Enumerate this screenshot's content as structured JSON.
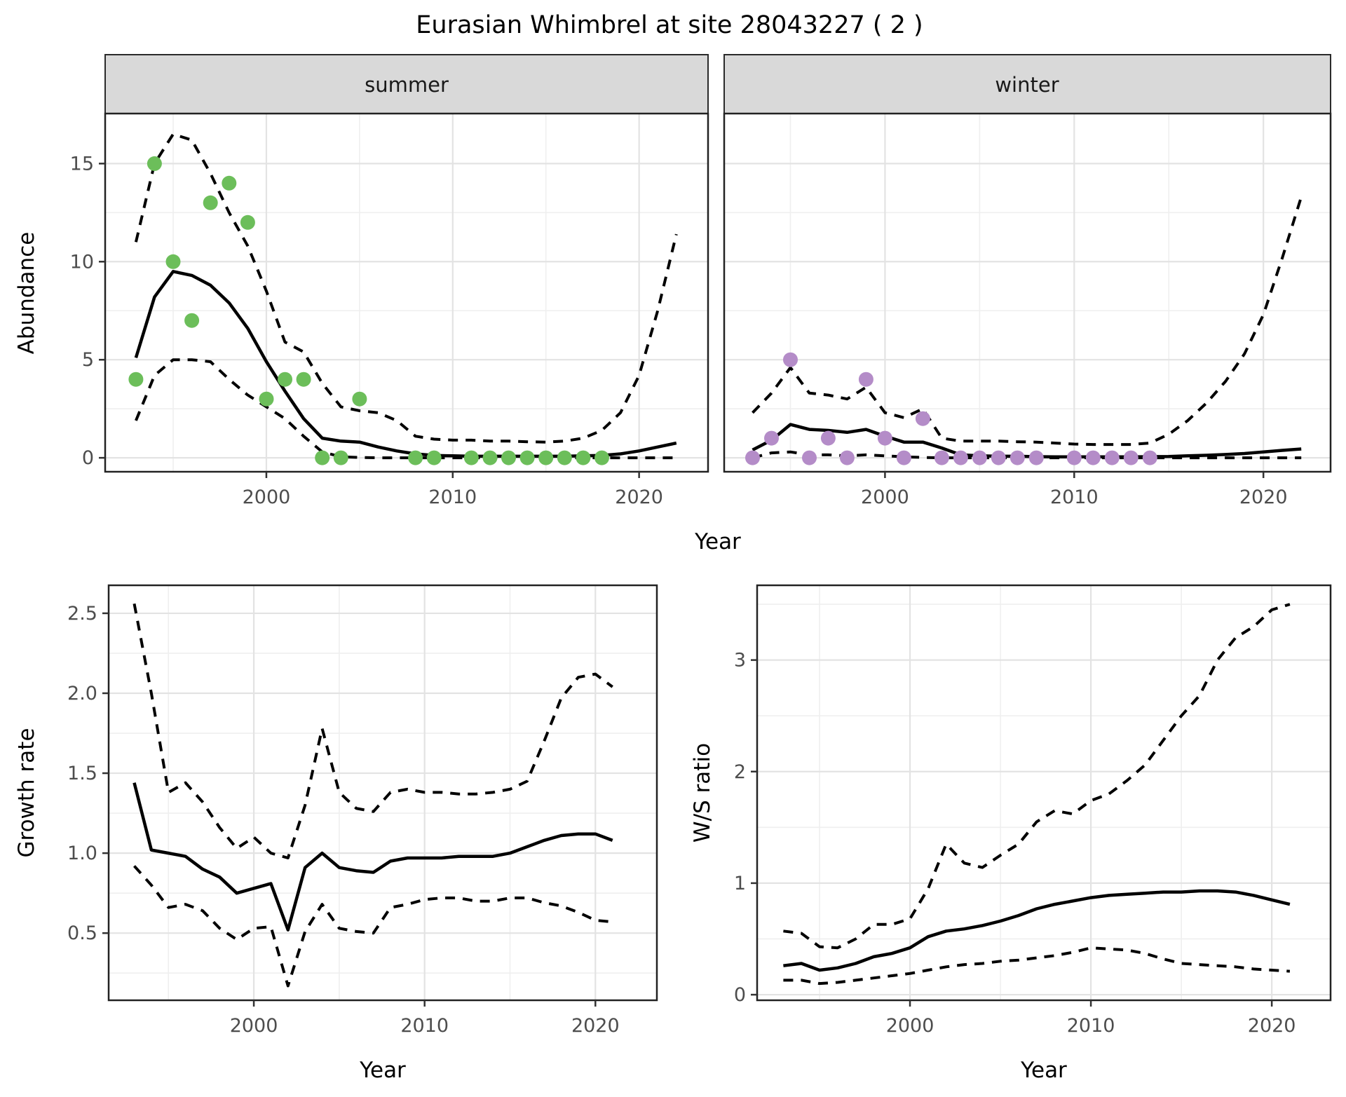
{
  "title": "Eurasian Whimbrel at site 28043227 ( 2 )",
  "colors": {
    "summer_points": "#6CBE5A",
    "winter_points": "#B48CC8",
    "line": "#000000",
    "strip_fill": "#D9D9D9",
    "grid_major": "#e3e3e3",
    "grid_minor": "#efefef"
  },
  "chart_data": [
    {
      "id": "abundance_summer",
      "type": "line",
      "facet": "summer",
      "xlabel": "Year",
      "ylabel": "Abundance",
      "xlim": [
        1991.35,
        2023.7
      ],
      "ylim": [
        -0.71,
        17.55
      ],
      "x_ticks": {
        "major": [
          2000,
          2010,
          2020
        ],
        "labels": [
          "2000",
          "2010",
          "2020"
        ],
        "minor": [
          1995,
          2005,
          2015
        ]
      },
      "y_ticks": {
        "major": [
          0,
          5,
          10,
          15
        ],
        "labels": [
          "0",
          "5",
          "10",
          "15"
        ],
        "minor": [
          2.5,
          7.5,
          12.5
        ],
        "show_labels": true
      },
      "series": [
        {
          "name": "observed",
          "kind": "points",
          "color": "#6CBE5A",
          "x": [
            1993,
            1994,
            1995,
            1996,
            1997,
            1998,
            1999,
            2000,
            2001,
            2002,
            2003,
            2004,
            2005,
            2008,
            2009,
            2011,
            2012,
            2013,
            2014,
            2015,
            2016,
            2017,
            2018
          ],
          "y": [
            4,
            15,
            10,
            7,
            13,
            14,
            12,
            3,
            4,
            4,
            0,
            0,
            3,
            0,
            0,
            0,
            0,
            0,
            0,
            0,
            0,
            0,
            0
          ]
        },
        {
          "name": "mean",
          "kind": "solid",
          "x": [
            1993,
            1994,
            1995,
            1996,
            1997,
            1998,
            1999,
            2000,
            2001,
            2002,
            2003,
            2004,
            2005,
            2006,
            2007,
            2008,
            2009,
            2010,
            2011,
            2012,
            2013,
            2014,
            2015,
            2016,
            2017,
            2018,
            2019,
            2020,
            2021,
            2022
          ],
          "y": [
            5.1,
            8.2,
            9.5,
            9.3,
            8.8,
            7.9,
            6.6,
            4.9,
            3.4,
            2.0,
            1.0,
            0.85,
            0.8,
            0.55,
            0.35,
            0.2,
            0.12,
            0.1,
            0.08,
            0.08,
            0.08,
            0.08,
            0.08,
            0.08,
            0.1,
            0.12,
            0.2,
            0.35,
            0.55,
            0.75
          ]
        },
        {
          "name": "ci_upper",
          "kind": "dashed",
          "x": [
            1993,
            1994,
            1995,
            1996,
            1997,
            1998,
            1999,
            2000,
            2001,
            2002,
            2003,
            2004,
            2005,
            2006,
            2007,
            2008,
            2009,
            2010,
            2011,
            2012,
            2013,
            2014,
            2015,
            2016,
            2017,
            2018,
            2019,
            2020,
            2021,
            2022
          ],
          "y": [
            11.0,
            15.0,
            16.5,
            16.2,
            14.5,
            12.5,
            10.8,
            8.5,
            5.9,
            5.4,
            3.8,
            2.6,
            2.4,
            2.3,
            1.9,
            1.1,
            0.95,
            0.9,
            0.9,
            0.85,
            0.85,
            0.82,
            0.8,
            0.85,
            1.0,
            1.4,
            2.3,
            4.2,
            7.5,
            11.4
          ]
        },
        {
          "name": "ci_lower",
          "kind": "dashed",
          "x": [
            1993,
            1994,
            1995,
            1996,
            1997,
            1998,
            1999,
            2000,
            2001,
            2002,
            2003,
            2004,
            2005,
            2006,
            2007,
            2008,
            2009,
            2010,
            2011,
            2012,
            2013,
            2014,
            2015,
            2016,
            2017,
            2018,
            2019,
            2020,
            2021,
            2022
          ],
          "y": [
            1.9,
            4.2,
            5.0,
            5.0,
            4.9,
            4.0,
            3.2,
            2.6,
            2.0,
            1.1,
            0.3,
            0.05,
            0.02,
            0,
            0,
            0,
            0,
            0,
            0,
            0,
            0,
            0,
            0,
            0,
            0,
            0,
            0,
            0,
            0,
            0
          ]
        }
      ]
    },
    {
      "id": "abundance_winter",
      "type": "line",
      "facet": "winter",
      "xlabel": "Year",
      "ylabel": "Abundance",
      "xlim": [
        1991.5,
        2023.55
      ],
      "ylim": [
        -0.71,
        17.55
      ],
      "x_ticks": {
        "major": [
          2000,
          2010,
          2020
        ],
        "labels": [
          "2000",
          "2010",
          "2020"
        ],
        "minor": [
          1995,
          2005,
          2015
        ]
      },
      "y_ticks": {
        "major": [
          0,
          5,
          10,
          15
        ],
        "labels": [
          "0",
          "5",
          "10",
          "15"
        ],
        "minor": [
          2.5,
          7.5,
          12.5
        ],
        "show_labels": false
      },
      "series": [
        {
          "name": "observed",
          "kind": "points",
          "color": "#B48CC8",
          "x": [
            1993,
            1994,
            1995,
            1996,
            1997,
            1998,
            1999,
            2000,
            2001,
            2002,
            2003,
            2004,
            2005,
            2006,
            2007,
            2008,
            2010,
            2011,
            2012,
            2013,
            2014
          ],
          "y": [
            0,
            1,
            5,
            0,
            1,
            0,
            4,
            1,
            0,
            2,
            0,
            0,
            0,
            0,
            0,
            0,
            0,
            0,
            0,
            0,
            0
          ]
        },
        {
          "name": "mean",
          "kind": "solid",
          "x": [
            1993,
            1994,
            1995,
            1996,
            1997,
            1998,
            1999,
            2000,
            2001,
            2002,
            2003,
            2004,
            2005,
            2006,
            2007,
            2008,
            2009,
            2010,
            2011,
            2012,
            2013,
            2014,
            2015,
            2016,
            2017,
            2018,
            2019,
            2020,
            2021,
            2022
          ],
          "y": [
            0.4,
            0.9,
            1.7,
            1.45,
            1.4,
            1.3,
            1.45,
            1.1,
            0.8,
            0.8,
            0.5,
            0.15,
            0.1,
            0.08,
            0.08,
            0.06,
            0.05,
            0.05,
            0.05,
            0.05,
            0.05,
            0.06,
            0.07,
            0.1,
            0.13,
            0.17,
            0.22,
            0.3,
            0.38,
            0.45
          ]
        },
        {
          "name": "ci_upper",
          "kind": "dashed",
          "x": [
            1993,
            1994,
            1995,
            1996,
            1997,
            1998,
            1999,
            2000,
            2001,
            2002,
            2003,
            2004,
            2005,
            2006,
            2007,
            2008,
            2009,
            2010,
            2011,
            2012,
            2013,
            2014,
            2015,
            2016,
            2017,
            2018,
            2019,
            2020,
            2021,
            2022
          ],
          "y": [
            2.3,
            3.3,
            4.6,
            3.3,
            3.2,
            3.0,
            3.6,
            2.3,
            2.05,
            2.5,
            1.0,
            0.85,
            0.85,
            0.85,
            0.82,
            0.8,
            0.75,
            0.7,
            0.68,
            0.68,
            0.68,
            0.75,
            1.2,
            1.9,
            2.8,
            3.9,
            5.3,
            7.3,
            10.2,
            13.3
          ]
        },
        {
          "name": "ci_lower",
          "kind": "dashed",
          "x": [
            1993,
            1994,
            1995,
            1996,
            1997,
            1998,
            1999,
            2000,
            2001,
            2002,
            2003,
            2004,
            2005,
            2006,
            2007,
            2008,
            2009,
            2010,
            2011,
            2012,
            2013,
            2014,
            2015,
            2016,
            2017,
            2018,
            2019,
            2020,
            2021,
            2022
          ],
          "y": [
            0,
            0.25,
            0.3,
            0.15,
            0.15,
            0.1,
            0.15,
            0.1,
            0.05,
            0.02,
            0,
            0,
            0,
            0,
            0,
            0,
            0,
            0,
            0,
            0,
            0,
            0,
            0,
            0,
            0,
            0,
            0,
            0,
            0,
            0
          ]
        }
      ]
    },
    {
      "id": "growth_rate",
      "type": "line",
      "facet": null,
      "xlabel": "Year",
      "ylabel": "Growth rate",
      "xlim": [
        1991.5,
        2023.6
      ],
      "ylim": [
        0.08,
        2.675
      ],
      "x_ticks": {
        "major": [
          2000,
          2010,
          2020
        ],
        "labels": [
          "2000",
          "2010",
          "2020"
        ],
        "minor": [
          1995,
          2005,
          2015
        ]
      },
      "y_ticks": {
        "major": [
          0.5,
          1.0,
          1.5,
          2.0,
          2.5
        ],
        "labels": [
          "0.5",
          "1.0",
          "1.5",
          "2.0",
          "2.5"
        ],
        "minor": [
          0.25,
          0.75,
          1.25,
          1.75,
          2.25
        ],
        "show_labels": true
      },
      "series": [
        {
          "name": "mean",
          "kind": "solid",
          "x": [
            1993,
            1994,
            1995,
            1996,
            1997,
            1998,
            1999,
            2000,
            2001,
            2002,
            2003,
            2004,
            2005,
            2006,
            2007,
            2008,
            2009,
            2010,
            2011,
            2012,
            2013,
            2014,
            2015,
            2016,
            2017,
            2018,
            2019,
            2020,
            2021
          ],
          "y": [
            1.44,
            1.02,
            1.0,
            0.98,
            0.9,
            0.85,
            0.75,
            0.78,
            0.81,
            0.52,
            0.91,
            1.0,
            0.91,
            0.89,
            0.88,
            0.95,
            0.97,
            0.97,
            0.97,
            0.98,
            0.98,
            0.98,
            1.0,
            1.04,
            1.08,
            1.11,
            1.12,
            1.12,
            1.08
          ]
        },
        {
          "name": "ci_upper",
          "kind": "dashed",
          "x": [
            1993,
            1994,
            1995,
            1996,
            1997,
            1998,
            1999,
            2000,
            2001,
            2002,
            2003,
            2004,
            2005,
            2006,
            2007,
            2008,
            2009,
            2010,
            2011,
            2012,
            2013,
            2014,
            2015,
            2016,
            2017,
            2018,
            2019,
            2020,
            2021
          ],
          "y": [
            2.56,
            2.0,
            1.38,
            1.44,
            1.32,
            1.16,
            1.03,
            1.1,
            1.0,
            0.97,
            1.3,
            1.78,
            1.38,
            1.28,
            1.26,
            1.38,
            1.4,
            1.38,
            1.38,
            1.37,
            1.37,
            1.38,
            1.4,
            1.45,
            1.7,
            1.97,
            2.1,
            2.12,
            2.04
          ]
        },
        {
          "name": "ci_lower",
          "kind": "dashed",
          "x": [
            1993,
            1994,
            1995,
            1996,
            1997,
            1998,
            1999,
            2000,
            2001,
            2002,
            2003,
            2004,
            2005,
            2006,
            2007,
            2008,
            2009,
            2010,
            2011,
            2012,
            2013,
            2014,
            2015,
            2016,
            2017,
            2018,
            2019,
            2020,
            2021
          ],
          "y": [
            0.92,
            0.8,
            0.66,
            0.68,
            0.64,
            0.53,
            0.46,
            0.53,
            0.54,
            0.17,
            0.51,
            0.68,
            0.53,
            0.51,
            0.5,
            0.66,
            0.68,
            0.71,
            0.72,
            0.72,
            0.7,
            0.7,
            0.72,
            0.72,
            0.69,
            0.67,
            0.63,
            0.58,
            0.57
          ]
        }
      ]
    },
    {
      "id": "ws_ratio",
      "type": "line",
      "facet": null,
      "xlabel": "Year",
      "ylabel": "W/S ratio",
      "xlim": [
        1991.55,
        2023.25
      ],
      "ylim": [
        -0.05,
        3.67
      ],
      "x_ticks": {
        "major": [
          2000,
          2010,
          2020
        ],
        "labels": [
          "2000",
          "2010",
          "2020"
        ],
        "minor": [
          1995,
          2005,
          2015
        ]
      },
      "y_ticks": {
        "major": [
          0,
          1,
          2,
          3
        ],
        "labels": [
          "0",
          "1",
          "2",
          "3"
        ],
        "minor": [
          0.5,
          1.5,
          2.5,
          3.5
        ],
        "show_labels": true
      },
      "series": [
        {
          "name": "mean",
          "kind": "solid",
          "x": [
            1993,
            1994,
            1995,
            1996,
            1997,
            1998,
            1999,
            2000,
            2001,
            2002,
            2003,
            2004,
            2005,
            2006,
            2007,
            2008,
            2009,
            2010,
            2011,
            2012,
            2013,
            2014,
            2015,
            2016,
            2017,
            2018,
            2019,
            2020,
            2021
          ],
          "y": [
            0.26,
            0.28,
            0.22,
            0.24,
            0.28,
            0.34,
            0.37,
            0.42,
            0.52,
            0.57,
            0.59,
            0.62,
            0.66,
            0.71,
            0.77,
            0.81,
            0.84,
            0.87,
            0.89,
            0.9,
            0.91,
            0.92,
            0.92,
            0.93,
            0.93,
            0.92,
            0.89,
            0.85,
            0.81
          ]
        },
        {
          "name": "ci_upper",
          "kind": "dashed",
          "x": [
            1993,
            1994,
            1995,
            1996,
            1997,
            1998,
            1999,
            2000,
            2001,
            2002,
            2003,
            2004,
            2005,
            2006,
            2007,
            2008,
            2009,
            2010,
            2011,
            2012,
            2013,
            2014,
            2015,
            2016,
            2017,
            2018,
            2019,
            2020,
            2021
          ],
          "y": [
            0.57,
            0.55,
            0.43,
            0.42,
            0.5,
            0.63,
            0.63,
            0.68,
            0.95,
            1.35,
            1.18,
            1.14,
            1.25,
            1.35,
            1.55,
            1.65,
            1.62,
            1.74,
            1.8,
            1.92,
            2.06,
            2.28,
            2.5,
            2.68,
            3.0,
            3.2,
            3.3,
            3.45,
            3.5
          ]
        },
        {
          "name": "ci_lower",
          "kind": "dashed",
          "x": [
            1993,
            1994,
            1995,
            1996,
            1997,
            1998,
            1999,
            2000,
            2001,
            2002,
            2003,
            2004,
            2005,
            2006,
            2007,
            2008,
            2009,
            2010,
            2011,
            2012,
            2013,
            2014,
            2015,
            2016,
            2017,
            2018,
            2019,
            2020,
            2021
          ],
          "y": [
            0.13,
            0.13,
            0.1,
            0.11,
            0.13,
            0.15,
            0.17,
            0.19,
            0.22,
            0.25,
            0.27,
            0.28,
            0.3,
            0.31,
            0.33,
            0.35,
            0.38,
            0.42,
            0.41,
            0.4,
            0.37,
            0.32,
            0.28,
            0.27,
            0.26,
            0.25,
            0.23,
            0.22,
            0.21
          ]
        }
      ]
    }
  ]
}
